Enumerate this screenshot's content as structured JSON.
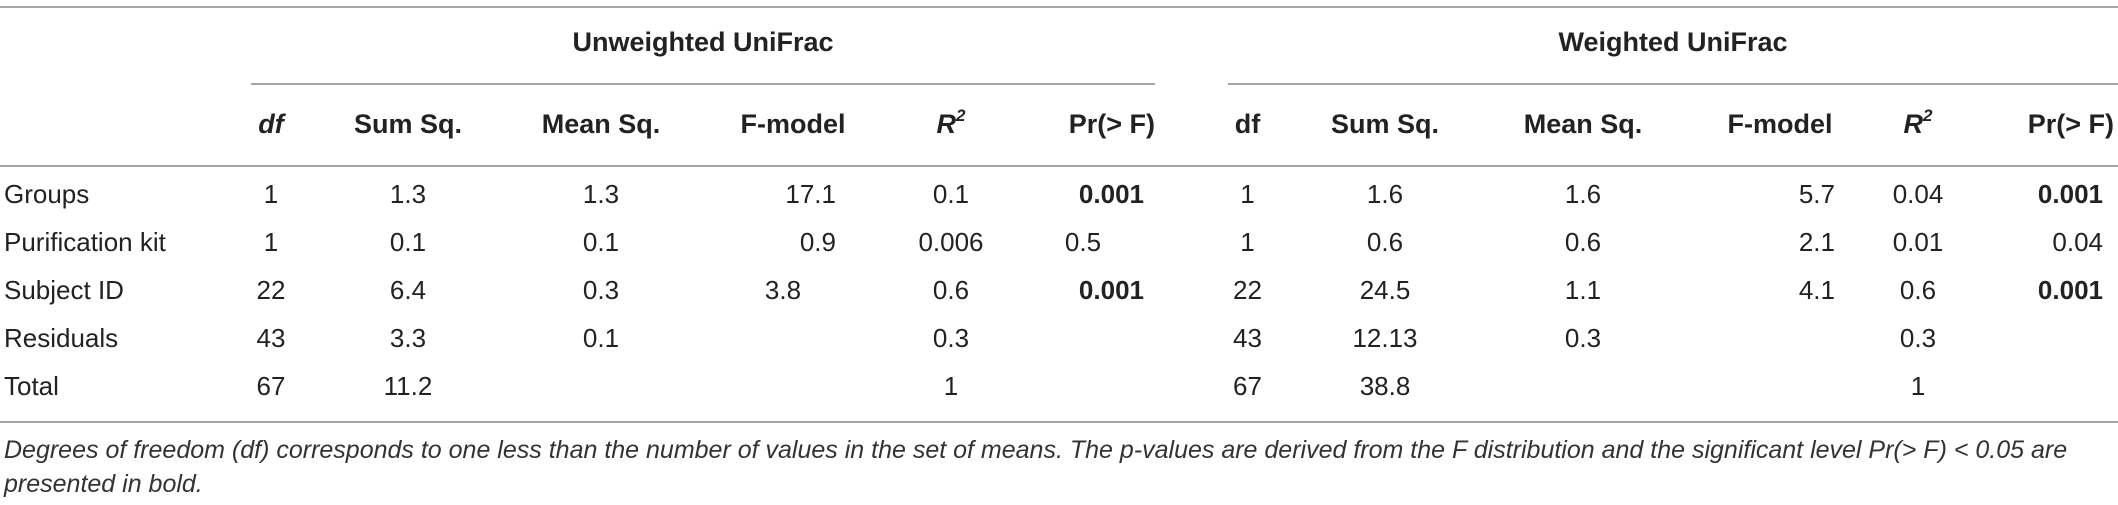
{
  "group_headers": {
    "unweighted": "Unweighted UniFrac",
    "weighted": "Weighted UniFrac"
  },
  "columns": {
    "df": "df",
    "sum_sq": "Sum Sq.",
    "mean_sq": "Mean Sq.",
    "f_model": "F-model",
    "r2_base": "R",
    "r2_sup": "2",
    "pr": "Pr(> F)"
  },
  "rows": [
    {
      "label": "Groups",
      "u": [
        "1",
        "1.3",
        "1.3",
        "17.1",
        "0.1",
        "0.001"
      ],
      "w": [
        "1",
        "1.6",
        "1.6",
        "5.7",
        "0.04",
        "0.001"
      ]
    },
    {
      "label": "Purification kit",
      "u": [
        "1",
        "0.1",
        "0.1",
        "0.9",
        "0.006",
        "0.5"
      ],
      "w": [
        "1",
        "0.6",
        "0.6",
        "2.1",
        "0.01",
        "0.04"
      ]
    },
    {
      "label": "Subject ID",
      "u": [
        "22",
        "6.4",
        "0.3",
        "3.8",
        "0.6",
        "0.001"
      ],
      "w": [
        "22",
        "24.5",
        "1.1",
        "4.1",
        "0.6",
        "0.001"
      ]
    },
    {
      "label": "Residuals",
      "u": [
        "43",
        "3.3",
        "0.1",
        "",
        "0.3",
        ""
      ],
      "w": [
        "43",
        "12.13",
        "0.3",
        "",
        "0.3",
        ""
      ]
    },
    {
      "label": "Total",
      "u": [
        "67",
        "11.2",
        "",
        "",
        "1",
        ""
      ],
      "w": [
        "67",
        "38.8",
        "",
        "",
        "1",
        ""
      ]
    }
  ],
  "footnote": "Degrees of freedom (df) corresponds to one less than the number of values in the set of means. The p-values are derived from the F distribution and the significant level Pr(> F) < 0.05 are presented in bold."
}
